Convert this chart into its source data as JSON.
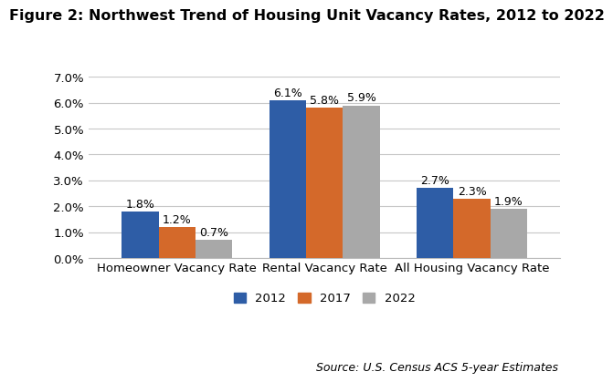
{
  "title": "Figure 2: Northwest Trend of Housing Unit Vacancy Rates, 2012 to 2022",
  "categories": [
    "Homeowner Vacancy Rate",
    "Rental Vacancy Rate",
    "All Housing Vacancy Rate"
  ],
  "years": [
    "2012",
    "2017",
    "2022"
  ],
  "values": {
    "2012": [
      1.8,
      6.1,
      2.7
    ],
    "2017": [
      1.2,
      5.8,
      2.3
    ],
    "2022": [
      0.7,
      5.9,
      1.9
    ]
  },
  "colors": {
    "2012": "#2E5DA6",
    "2017": "#D4692A",
    "2022": "#A8A8A8"
  },
  "ylim": [
    0,
    7.0
  ],
  "yticks": [
    0.0,
    1.0,
    2.0,
    3.0,
    4.0,
    5.0,
    6.0,
    7.0
  ],
  "ytick_labels": [
    "0.0%",
    "1.0%",
    "2.0%",
    "3.0%",
    "4.0%",
    "5.0%",
    "6.0%",
    "7.0%"
  ],
  "source": "Source: U.S. Census ACS 5-year Estimates",
  "bar_width": 0.25,
  "background_color": "#FFFFFF",
  "plot_background_color": "#FFFFFF",
  "grid_color": "#C8C8C8",
  "title_fontsize": 11.5,
  "axis_label_fontsize": 9.5,
  "tick_fontsize": 9.5,
  "value_label_fontsize": 9,
  "source_fontsize": 9
}
